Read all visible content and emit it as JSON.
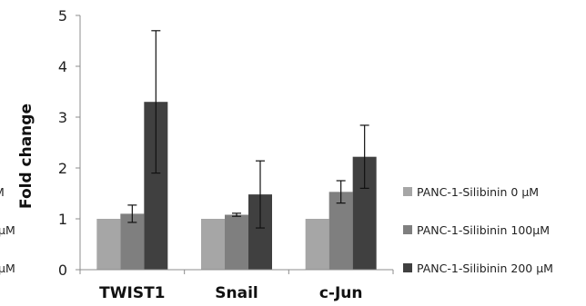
{
  "chart_data": {
    "type": "bar",
    "title": "",
    "xlabel": "",
    "ylabel": "Fold change",
    "ylim": [
      0,
      5
    ],
    "yticks": [
      "0",
      "1",
      "2",
      "3",
      "4",
      "5"
    ],
    "categories": [
      "TWIST1",
      "Snail",
      "c-Jun"
    ],
    "series": [
      {
        "name": "PANC-1-Silibinin 0 μM",
        "color": "#a6a6a6",
        "values": [
          1.0,
          1.0,
          1.0
        ],
        "errors": [
          0,
          0,
          0
        ]
      },
      {
        "name": "PANC-1-Silibinin 100μM",
        "color": "#7f7f7f",
        "values": [
          1.1,
          1.08,
          1.53
        ],
        "errors": [
          0.17,
          0.03,
          0.22
        ]
      },
      {
        "name": "PANC-1-Silibinin 200 μM",
        "color": "#404040",
        "values": [
          3.3,
          1.48,
          2.22
        ],
        "errors": [
          1.4,
          0.66,
          0.62
        ]
      }
    ],
    "grid": false,
    "legend_position": "right"
  },
  "left_fragments": [
    "M",
    "μM",
    "μM"
  ]
}
